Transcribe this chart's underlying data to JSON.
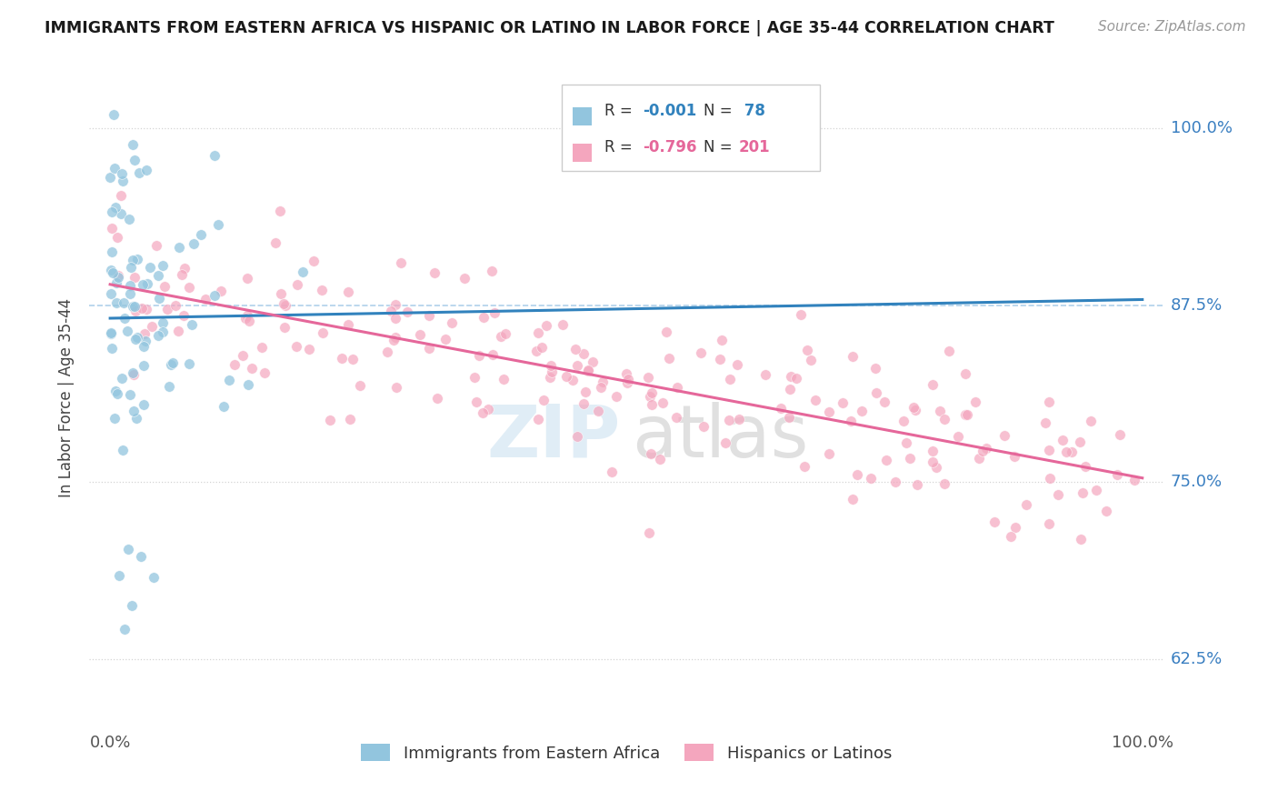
{
  "title": "IMMIGRANTS FROM EASTERN AFRICA VS HISPANIC OR LATINO IN LABOR FORCE | AGE 35-44 CORRELATION CHART",
  "source": "Source: ZipAtlas.com",
  "ylabel": "In Labor Force | Age 35-44",
  "xlim": [
    -0.02,
    1.02
  ],
  "ylim": [
    0.575,
    1.045
  ],
  "yticks": [
    0.625,
    0.75,
    0.875,
    1.0
  ],
  "ytick_labels": [
    "62.5%",
    "75.0%",
    "87.5%",
    "100.0%"
  ],
  "xticks": [
    0.0,
    1.0
  ],
  "xtick_labels": [
    "0.0%",
    "100.0%"
  ],
  "color_blue": "#92c5de",
  "color_pink": "#f4a6be",
  "color_blue_line": "#3182bd",
  "color_pink_line": "#e5679a",
  "color_blue_text": "#3182bd",
  "color_pink_text": "#e5679a",
  "background_color": "#ffffff",
  "grid_color_dotted": "#d0d0d0",
  "grid_color_dashed": "#a8cce8",
  "title_color": "#1a1a1a",
  "right_label_color": "#3a7fc1",
  "n_blue": 78,
  "n_pink": 201,
  "r_blue": -0.001,
  "r_pink": -0.796,
  "seed_blue": 12,
  "seed_pink": 7,
  "watermark_zip_color": "#c8dff0",
  "watermark_atlas_color": "#c8c8c8"
}
